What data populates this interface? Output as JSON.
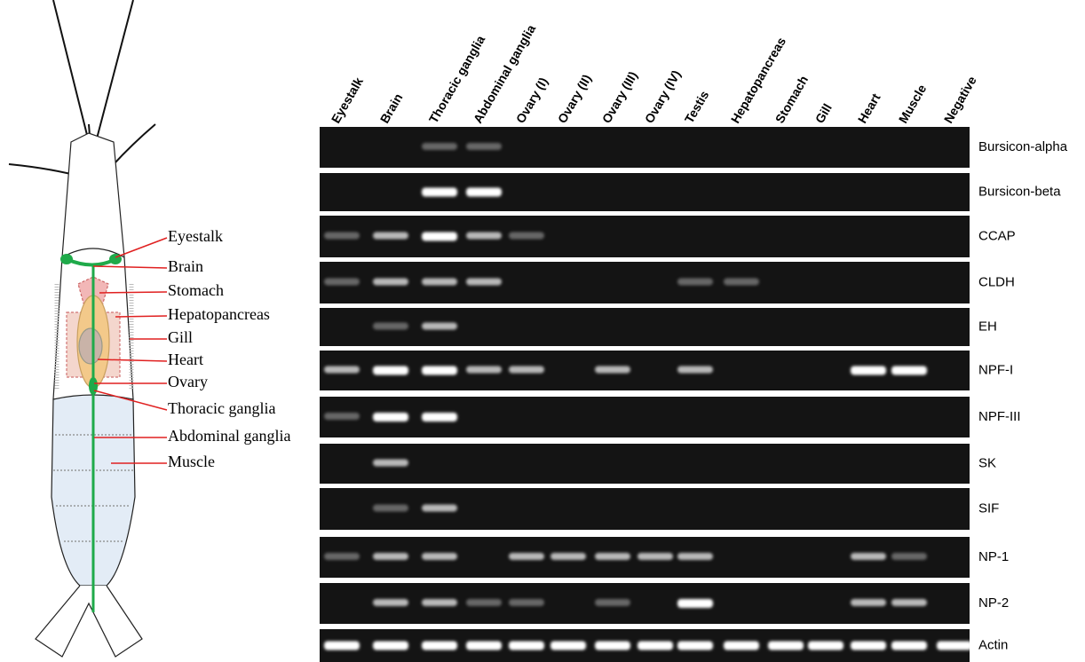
{
  "anatomy_labels": [
    "Eyestalk",
    "Brain",
    "Stomach",
    "Hepatopancreas",
    "Gill",
    "Heart",
    "Ovary",
    "Thoracic ganglia",
    "Abdominal ganglia",
    "Muscle"
  ],
  "gel": {
    "lanes": [
      "Eyestalk",
      "Brain",
      "Thoracic ganglia",
      "Abdominal ganglia",
      "Ovary (I)",
      "Ovary (II)",
      "Ovary (III)",
      "Ovary (IV)",
      "Testis",
      "Hepatopancreas",
      "Stomach",
      "Gill",
      "Heart",
      "Muscle",
      "Negative"
    ],
    "genes": [
      "Bursicon-alpha",
      "Bursicon-beta",
      "CCAP",
      "CLDH",
      "EH",
      "NPF-I",
      "NPF-III",
      "SK",
      "SIF",
      "NP-1",
      "NP-2",
      "Actin"
    ]
  }
}
